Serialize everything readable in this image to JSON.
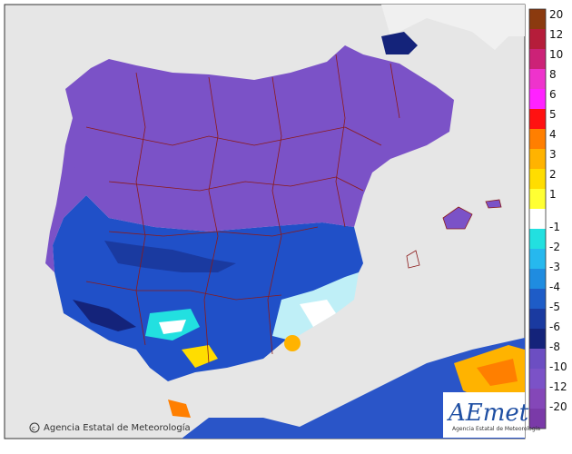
{
  "map": {
    "colors": {
      "sea": "#e6e6e6",
      "land_far": "#f2f2f2",
      "border": "#8b1a1a",
      "frame": "#333333"
    }
  },
  "colorbar": {
    "labels": [
      "20",
      "12",
      "10",
      "8",
      "6",
      "5",
      "4",
      "3",
      "2",
      "1",
      "-1",
      "-2",
      "-3",
      "-4",
      "-5",
      "-6",
      "-8",
      "-10",
      "-12",
      "-20"
    ],
    "warm_colors": [
      "#8b3a0f",
      "#b51d3a",
      "#cc2277",
      "#ee33cc",
      "#ff22ff",
      "#ff1111",
      "#ff7f00",
      "#ffb300",
      "#ffdd00",
      "#ffff33"
    ],
    "cold_colors": [
      "#22e0e0",
      "#26b8ee",
      "#1f8ce0",
      "#1e5cc7",
      "#1a3aa0",
      "#14237a",
      "#6c4ec2",
      "#7b52c7",
      "#8447b8",
      "#7a3aa8"
    ]
  },
  "copyright": "Agencia Estatal de Meteorología",
  "logo": {
    "word": "AEmet",
    "subtitle": "Agencia Estatal de Meteorología"
  }
}
